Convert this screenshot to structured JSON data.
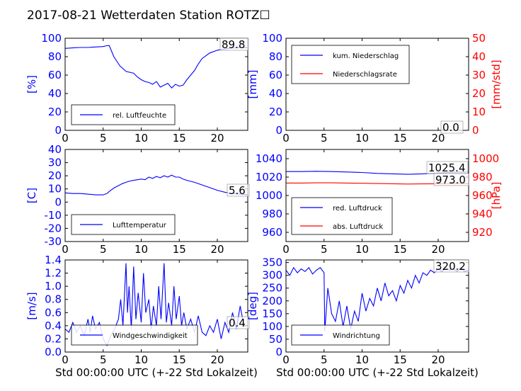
{
  "title": "2017-08-21 Wetterdaten Station ROTZ☐",
  "colors": {
    "primary": "#0000ff",
    "secondary": "#ff0000",
    "axis": "#000000"
  },
  "chart_data": [
    {
      "id": "humidity",
      "type": "line",
      "ylabel": "[%]",
      "xlabel": "",
      "xlim": [
        0,
        24
      ],
      "ylim": [
        0,
        100
      ],
      "xticks": [
        0,
        5,
        10,
        15,
        20
      ],
      "yticks": [
        0,
        20,
        40,
        60,
        80,
        100
      ],
      "series": [
        {
          "name": "rel. Luftfeuchte",
          "color": "#0000ff",
          "x": [
            0,
            1,
            2,
            3,
            4,
            5,
            5.5,
            5.8,
            6.0,
            6.4,
            6.8,
            7.2,
            7.6,
            8.0,
            8.5,
            9.0,
            9.5,
            10.0,
            10.5,
            11.0,
            11.5,
            12.0,
            12.5,
            13.0,
            13.5,
            14.0,
            14.5,
            15.0,
            15.5,
            16.0,
            16.5,
            17.0,
            17.5,
            18.0,
            19.0,
            20.0,
            21.0,
            22.0,
            23.0,
            24.0
          ],
          "y": [
            89,
            89.5,
            90,
            90,
            90.5,
            91,
            92,
            92,
            88,
            80,
            75,
            70,
            67,
            64,
            63,
            62,
            58,
            55,
            53,
            52,
            50,
            53,
            47,
            49,
            51,
            46,
            50,
            48,
            49,
            55,
            60,
            65,
            72,
            78,
            84,
            87,
            88.5,
            89.5,
            89.8,
            89.8
          ]
        }
      ],
      "annotation": "89.8",
      "legend": "lower-left"
    },
    {
      "id": "precip",
      "type": "line",
      "ylabel": "[mm]",
      "y2label": "[mm/std]",
      "xlabel": "",
      "xlim": [
        0,
        24
      ],
      "ylim": [
        0,
        100
      ],
      "y2lim": [
        0,
        50
      ],
      "xticks": [
        0,
        5,
        10,
        15,
        20
      ],
      "yticks": [
        0,
        20,
        40,
        60,
        80,
        100
      ],
      "y2ticks": [
        0,
        10,
        20,
        30,
        40,
        50
      ],
      "series": [
        {
          "name": "kum. Niederschlag",
          "color": "#0000ff",
          "x": [
            0,
            24
          ],
          "y": [
            0,
            0
          ]
        },
        {
          "name": "Niederschlagsrate",
          "color": "#ff0000",
          "axis": "right",
          "x": [
            0,
            24
          ],
          "y": [
            0,
            0
          ]
        }
      ],
      "annotation": "0.0",
      "legend": "upper-left"
    },
    {
      "id": "temperature",
      "type": "line",
      "ylabel": "[C]",
      "xlabel": "",
      "xlim": [
        0,
        24
      ],
      "ylim": [
        -30,
        40
      ],
      "xticks": [
        0,
        5,
        10,
        15,
        20
      ],
      "yticks": [
        -30,
        -20,
        -10,
        0,
        10,
        20,
        30,
        40
      ],
      "series": [
        {
          "name": "Lufttemperatur",
          "color": "#0000ff",
          "x": [
            0,
            1,
            2,
            3,
            4,
            5,
            5.5,
            6,
            6.5,
            7,
            7.5,
            8,
            8.5,
            9,
            9.5,
            10,
            10.5,
            11,
            11.5,
            12,
            12.5,
            13,
            13.5,
            14,
            14.5,
            15,
            15.5,
            16,
            17,
            18,
            19,
            20,
            21,
            22,
            23,
            24
          ],
          "y": [
            7,
            6.5,
            6.5,
            6,
            5.5,
            5.5,
            6.5,
            9,
            11,
            12.5,
            14,
            15,
            16,
            16.5,
            17,
            17.5,
            17,
            19,
            18,
            19.5,
            18.5,
            20,
            19,
            20.5,
            19,
            19,
            17.5,
            16.5,
            15,
            13,
            11,
            9,
            7.5,
            6.5,
            6,
            5.6
          ]
        }
      ],
      "annotation": "5.6",
      "legend": "lower-left"
    },
    {
      "id": "pressure",
      "type": "line",
      "ylabel": "",
      "y2label": "[hPa]",
      "xlabel": "",
      "xlim": [
        0,
        24
      ],
      "ylim": [
        950,
        1050
      ],
      "y2lim": [
        910,
        1010
      ],
      "xticks": [
        0,
        5,
        10,
        15,
        20
      ],
      "yticks": [
        960,
        980,
        1000,
        1020,
        1040
      ],
      "y2ticks": [
        920,
        940,
        960,
        980,
        1000
      ],
      "series": [
        {
          "name": "red. Luftdruck",
          "color": "#0000ff",
          "x": [
            0,
            2,
            4,
            6,
            8,
            10,
            12,
            14,
            16,
            18,
            20,
            22,
            24
          ],
          "y": [
            1026,
            1026,
            1026.3,
            1026,
            1025.5,
            1025,
            1024,
            1023.5,
            1023,
            1023.5,
            1024.5,
            1025.3,
            1025.4
          ]
        },
        {
          "name": "abs. Luftdruck",
          "color": "#ff0000",
          "axis": "right",
          "x": [
            0,
            2,
            4,
            6,
            8,
            10,
            12,
            14,
            16,
            18,
            20,
            22,
            24
          ],
          "y": [
            973.5,
            973.5,
            973.8,
            973.8,
            973.5,
            973.3,
            973,
            972.8,
            972.5,
            972.6,
            972.8,
            973,
            973.0
          ]
        }
      ],
      "annotations": [
        "1025.4",
        "973.0"
      ],
      "legend": "lower-left"
    },
    {
      "id": "windspeed",
      "type": "line",
      "ylabel": "[m/s]",
      "xlabel": "Std 00:00:00 UTC (+-22 Std Lokalzeit)",
      "xlim": [
        0,
        24
      ],
      "ylim": [
        0,
        1.4
      ],
      "xticks": [
        0,
        5,
        10,
        15,
        20
      ],
      "yticks": [
        0.0,
        0.2,
        0.4,
        0.6,
        0.8,
        1.0,
        1.2,
        1.4
      ],
      "series": [
        {
          "name": "Windgeschwindigkeit",
          "color": "#0000ff",
          "x": [
            0,
            0.5,
            1,
            1.5,
            2,
            2.5,
            3,
            3.3,
            3.6,
            4,
            4.5,
            5,
            5.5,
            6,
            6.5,
            7,
            7.3,
            7.6,
            8,
            8.2,
            8.4,
            8.7,
            9,
            9.3,
            9.6,
            10,
            10.3,
            10.6,
            11,
            11.3,
            11.6,
            12,
            12.3,
            12.6,
            13,
            13.3,
            13.6,
            14,
            14.3,
            14.6,
            15,
            15.3,
            15.6,
            16,
            16.5,
            17,
            17.5,
            18,
            18.5,
            19,
            19.5,
            20,
            20.5,
            21,
            21.5,
            22,
            22.5,
            23,
            23.5,
            24
          ],
          "y": [
            0.35,
            0.3,
            0.45,
            0.3,
            0.4,
            0.25,
            0.5,
            0.3,
            0.55,
            0.35,
            0.45,
            0.2,
            0.1,
            0.25,
            0.35,
            0.5,
            0.8,
            0.4,
            1.35,
            0.6,
            1.0,
            0.35,
            1.3,
            0.5,
            0.9,
            0.45,
            1.2,
            0.6,
            0.8,
            0.35,
            0.7,
            0.4,
            1.0,
            0.5,
            1.35,
            0.45,
            0.75,
            0.4,
            1.0,
            0.5,
            0.85,
            0.4,
            0.6,
            0.35,
            0.5,
            0.3,
            0.55,
            0.3,
            0.25,
            0.4,
            0.3,
            0.5,
            0.2,
            0.45,
            0.3,
            0.6,
            0.35,
            0.7,
            0.4,
            0.4
          ]
        }
      ],
      "annotation": "0.4",
      "legend": "lower-left"
    },
    {
      "id": "winddir",
      "type": "line",
      "ylabel": "[deg]",
      "xlabel": "Std 00:00:00 UTC (+-22 Std Lokalzeit)",
      "xlim": [
        0,
        24
      ],
      "ylim": [
        0,
        360
      ],
      "xticks": [
        0,
        5,
        10,
        15,
        20
      ],
      "yticks": [
        0,
        50,
        100,
        150,
        200,
        250,
        300,
        350
      ],
      "series": [
        {
          "name": "Windrichtung",
          "color": "#0000ff",
          "x": [
            0,
            0.5,
            1,
            1.5,
            2,
            2.5,
            3,
            3.5,
            4,
            4.5,
            5,
            5.1,
            5.5,
            6,
            6.5,
            7,
            7.5,
            8,
            8.5,
            9,
            9.5,
            10,
            10.5,
            11,
            11.5,
            12,
            12.5,
            13,
            13.5,
            14,
            14.5,
            15,
            15.5,
            16,
            16.5,
            17,
            17.5,
            18,
            18.5,
            19,
            19.5,
            20,
            20.5,
            21,
            21.5,
            22,
            22.5,
            23,
            23.5,
            24
          ],
          "y": [
            320,
            300,
            330,
            310,
            325,
            315,
            330,
            305,
            320,
            330,
            310,
            80,
            250,
            150,
            120,
            200,
            100,
            180,
            90,
            160,
            120,
            230,
            160,
            210,
            180,
            250,
            200,
            270,
            220,
            240,
            200,
            260,
            230,
            280,
            250,
            300,
            270,
            310,
            300,
            320,
            310,
            325,
            315,
            330,
            320,
            325,
            315,
            330,
            315,
            320.2
          ]
        }
      ],
      "annotation": "320.2",
      "legend": "lower-left"
    }
  ]
}
